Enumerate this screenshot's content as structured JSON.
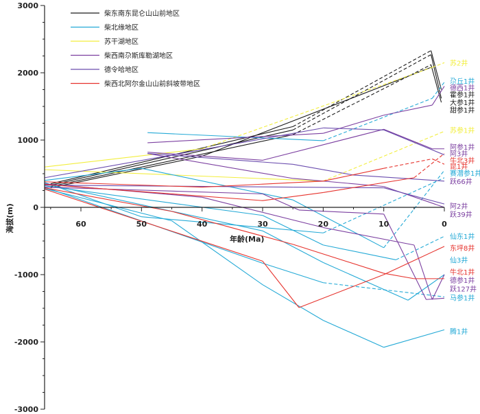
{
  "chart_data": {
    "type": "line",
    "xlabel": "年龄(Ma)",
    "ylabel": "海拔(m)",
    "xlim": [
      66,
      0
    ],
    "ylim": [
      -3000,
      3000
    ],
    "x_ticks": [
      60,
      50,
      40,
      30,
      20,
      10,
      0
    ],
    "y_ticks": [
      3000,
      2000,
      1000,
      0,
      -1000,
      -2000,
      -3000
    ],
    "colors": {
      "kunlun": "#1a1a1a",
      "chaibei": "#23a9d6",
      "sugan": "#f2ee3c",
      "duosi": "#7b3fa0",
      "delingha": "#6a4cae",
      "aerjin": "#e6322c"
    },
    "legend": [
      {
        "label": "柴东南东昆仑山山前地区",
        "color_key": "kunlun"
      },
      {
        "label": "柴北缘地区",
        "color_key": "chaibei"
      },
      {
        "label": "苏干湖地区",
        "color_key": "sugan"
      },
      {
        "label": "柴西南尕斯库勒湖地区",
        "color_key": "duosi"
      },
      {
        "label": "德令哈地区",
        "color_key": "delingha"
      },
      {
        "label": "柴西北阿尔金山山前斜坡带地区",
        "color_key": "aerjin"
      }
    ],
    "series": [
      {
        "color_key": "kunlun",
        "points": [
          [
            65,
            350
          ],
          [
            25,
            1200
          ],
          [
            2.2,
            2330
          ]
        ],
        "dashed_from": 1
      },
      {
        "color_key": "kunlun",
        "points": [
          [
            65,
            330
          ],
          [
            25,
            1150
          ],
          [
            2.2,
            2270
          ]
        ],
        "dashed_from": 1
      },
      {
        "color_key": "kunlun",
        "points": [
          [
            65,
            310
          ],
          [
            25,
            1080
          ],
          [
            2.2,
            2120
          ]
        ],
        "dashed_from": 1
      },
      {
        "color_key": "kunlun",
        "points": [
          [
            65,
            290
          ],
          [
            40,
            760
          ],
          [
            2.2,
            2080
          ]
        ],
        "dashed_from": 3
      },
      {
        "color_key": "kunlun",
        "points": [
          [
            2.2,
            2330
          ],
          [
            0.5,
            1750
          ]
        ],
        "dashed_from": 3
      },
      {
        "color_key": "kunlun",
        "points": [
          [
            2.2,
            2270
          ],
          [
            0.5,
            1620
          ]
        ],
        "dashed_from": 3
      },
      {
        "color_key": "kunlun",
        "points": [
          [
            2.2,
            2120
          ],
          [
            0.5,
            1560
          ]
        ],
        "dashed_from": 3
      },
      {
        "color_key": "sugan",
        "points": [
          [
            66,
            600
          ],
          [
            40,
            870
          ],
          [
            2,
            2080
          ],
          [
            0,
            2150
          ]
        ],
        "dashed_from": 1
      },
      {
        "color_key": "sugan",
        "points": [
          [
            66,
            560
          ],
          [
            20,
            390
          ],
          [
            0,
            1130
          ]
        ],
        "dashed_from": 1
      },
      {
        "color_key": "chaibei",
        "points": [
          [
            49,
            1110
          ],
          [
            20,
            990
          ],
          [
            2,
            1620
          ],
          [
            0,
            1860
          ]
        ],
        "dashed_from": 1
      },
      {
        "color_key": "chaibei",
        "points": [
          [
            66,
            400
          ],
          [
            50,
            580
          ],
          [
            25,
            110
          ],
          [
            10,
            -600
          ],
          [
            0,
            550
          ]
        ],
        "dashed_from": 3
      },
      {
        "color_key": "chaibei",
        "points": [
          [
            66,
            370
          ],
          [
            50,
            -140
          ],
          [
            20,
            -380
          ],
          [
            0,
            440
          ]
        ],
        "dashed_from": 2
      },
      {
        "color_key": "chaibei",
        "points": [
          [
            66,
            350
          ],
          [
            30,
            -350
          ],
          [
            20,
            -820
          ],
          [
            6,
            -1380
          ],
          [
            0,
            -1000
          ]
        ],
        "dashed_from": 4
      },
      {
        "color_key": "chaibei",
        "points": [
          [
            66,
            320
          ],
          [
            30,
            -120
          ],
          [
            20,
            -560
          ],
          [
            8,
            -780
          ],
          [
            0,
            -430
          ]
        ],
        "dashed_from": 3
      },
      {
        "color_key": "chaibei",
        "points": [
          [
            66,
            300
          ],
          [
            30,
            -830
          ],
          [
            20,
            -1120
          ],
          [
            0,
            -1330
          ]
        ],
        "dashed_from": 2
      },
      {
        "color_key": "chaibei",
        "points": [
          [
            66,
            280
          ],
          [
            45,
            -200
          ],
          [
            30,
            -1150
          ],
          [
            20,
            -1680
          ],
          [
            10,
            -2080
          ],
          [
            0,
            -1820
          ]
        ],
        "dashed_from": 5
      },
      {
        "color_key": "duosi",
        "points": [
          [
            49,
            820
          ],
          [
            30,
            700
          ],
          [
            10,
            1160
          ],
          [
            2,
            870
          ],
          [
            0,
            870
          ]
        ],
        "dashed_from": 9
      },
      {
        "color_key": "duosi",
        "points": [
          [
            49,
            960
          ],
          [
            20,
            1100
          ],
          [
            10,
            1370
          ],
          [
            2,
            1520
          ],
          [
            0,
            1800
          ]
        ],
        "dashed_from": 9
      },
      {
        "color_key": "duosi",
        "points": [
          [
            49,
            800
          ],
          [
            25,
            430
          ],
          [
            10,
            310
          ],
          [
            0,
            0
          ]
        ],
        "dashed_from": 9
      },
      {
        "color_key": "duosi",
        "points": [
          [
            66,
            350
          ],
          [
            40,
            150
          ],
          [
            20,
            -300
          ],
          [
            5,
            -560
          ],
          [
            2,
            -1370
          ],
          [
            0,
            -1000
          ]
        ],
        "dashed_from": 9
      },
      {
        "color_key": "duosi",
        "points": [
          [
            66,
            300
          ],
          [
            30,
            200
          ],
          [
            24,
            -40
          ],
          [
            10,
            -100
          ],
          [
            3,
            -1370
          ],
          [
            0,
            -1350
          ]
        ],
        "dashed_from": 9
      },
      {
        "color_key": "delingha",
        "points": [
          [
            66,
            440
          ],
          [
            28,
            1050
          ],
          [
            20,
            1180
          ],
          [
            10,
            1150
          ],
          [
            0,
            780
          ]
        ],
        "dashed_from": 9
      },
      {
        "color_key": "delingha",
        "points": [
          [
            49,
            800
          ],
          [
            25,
            640
          ],
          [
            15,
            480
          ],
          [
            0,
            390
          ]
        ],
        "dashed_from": 9
      },
      {
        "color_key": "delingha",
        "points": [
          [
            66,
            330
          ],
          [
            25,
            300
          ],
          [
            10,
            290
          ],
          [
            0,
            50
          ]
        ],
        "dashed_from": 9
      },
      {
        "color_key": "aerjin",
        "points": [
          [
            66,
            380
          ],
          [
            40,
            300
          ],
          [
            20,
            390
          ],
          [
            10,
            580
          ],
          [
            2,
            720
          ],
          [
            0,
            640
          ]
        ],
        "dashed_from": 3
      },
      {
        "color_key": "aerjin",
        "points": [
          [
            66,
            340
          ],
          [
            30,
            100
          ],
          [
            20,
            220
          ],
          [
            5,
            440
          ],
          [
            0,
            800
          ]
        ],
        "dashed_from": 3
      },
      {
        "color_key": "aerjin",
        "points": [
          [
            66,
            290
          ],
          [
            45,
            -60
          ],
          [
            25,
            -550
          ],
          [
            10,
            -980
          ],
          [
            5,
            -1060
          ],
          [
            0,
            -1060
          ]
        ],
        "dashed_from": 9
      },
      {
        "color_key": "aerjin",
        "points": [
          [
            66,
            270
          ],
          [
            30,
            -800
          ],
          [
            24,
            -1490
          ],
          [
            10,
            -1000
          ],
          [
            0,
            -580
          ]
        ],
        "dashed_from": 9
      }
    ],
    "labels": [
      {
        "text": "苏2井",
        "value": 2150,
        "color_key": "sugan"
      },
      {
        "text": "尕丘1井",
        "value": 1880,
        "color_key": "chaibei"
      },
      {
        "text": "德西1井",
        "value": 1780,
        "color_key": "duosi"
      },
      {
        "text": "霍参1井",
        "value": 1680,
        "color_key": "kunlun"
      },
      {
        "text": "大参1井",
        "value": 1560,
        "color_key": "kunlun"
      },
      {
        "text": "甜参1井",
        "value": 1450,
        "color_key": "kunlun"
      },
      {
        "text": "苏参1井",
        "value": 1150,
        "color_key": "sugan"
      },
      {
        "text": "阿参1井",
        "value": 900,
        "color_key": "duosi"
      },
      {
        "text": "阿3井",
        "value": 800,
        "color_key": "duosi"
      },
      {
        "text": "牛北3井",
        "value": 700,
        "color_key": "aerjin"
      },
      {
        "text": "昆1井",
        "value": 610,
        "color_key": "aerjin"
      },
      {
        "text": "赛潜参1井",
        "value": 510,
        "color_key": "chaibei"
      },
      {
        "text": "跃66井",
        "value": 390,
        "color_key": "duosi"
      },
      {
        "text": "阿2井",
        "value": 20,
        "color_key": "duosi"
      },
      {
        "text": "跃39井",
        "value": -100,
        "color_key": "duosi"
      },
      {
        "text": "仙东1井",
        "value": -430,
        "color_key": "chaibei"
      },
      {
        "text": "东坪8井",
        "value": -600,
        "color_key": "aerjin"
      },
      {
        "text": "仙3井",
        "value": -780,
        "color_key": "chaibei"
      },
      {
        "text": "牛北1井",
        "value": -960,
        "color_key": "aerjin"
      },
      {
        "text": "德参1井",
        "value": -1080,
        "color_key": "duosi"
      },
      {
        "text": "跃127井",
        "value": -1210,
        "color_key": "duosi"
      },
      {
        "text": "马参1井",
        "value": -1340,
        "color_key": "chaibei"
      },
      {
        "text": "腾1井",
        "value": -1840,
        "color_key": "chaibei"
      }
    ]
  }
}
